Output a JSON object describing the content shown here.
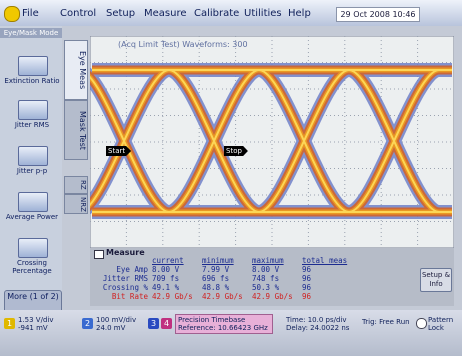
{
  "menu": {
    "items": [
      "File",
      "Control",
      "Setup",
      "Measure",
      "Calibrate",
      "Utilities",
      "Help"
    ],
    "datetime": "29 Oct 2008 10:46"
  },
  "sidebar": {
    "mode": "Eye/Mask Mode",
    "buttons": [
      "Extinction Ratio",
      "Jitter RMS",
      "Jitter p-p",
      "Average Power",
      "Crossing Percentage"
    ],
    "more": "More (1 of 2)",
    "tabs": [
      "Eye Meas",
      "Mask Test"
    ],
    "format_tabs": [
      "RZ",
      "NRZ"
    ]
  },
  "screen": {
    "status": "(Acq Limit Test)  Waveforms: 300",
    "markers": [
      "Start",
      "Stop"
    ]
  },
  "measure": {
    "title": "Measure",
    "columns": [
      "current",
      "minimum",
      "maximum",
      "total meas"
    ],
    "rows": [
      [
        "Eye Amp",
        "8.00 V",
        "7.99 V",
        "8.00 V",
        "96"
      ],
      [
        "Jitter RMS",
        "709 fs",
        "696 fs",
        "748 fs",
        "96"
      ],
      [
        "Crossing %",
        "49.1 %",
        "48.8 %",
        "50.3 %",
        "96"
      ],
      [
        "Bit Rate",
        "42.9 Gb/s",
        "42.9 Gb/s",
        "42.9 Gb/s",
        "96"
      ]
    ],
    "setup_button": "Setup & Info"
  },
  "status_bar": {
    "channel1": {
      "number": "1",
      "scale": "1.53 V/div",
      "offset": "-941 mV"
    },
    "channel2": {
      "number": "2",
      "scale": "100 mV/div",
      "offset": "24.0 mV"
    },
    "channel3": "3",
    "channel4": "4",
    "timebase": {
      "title": "Precision Timebase",
      "reference": "Reference: 10.66423 GHz"
    },
    "time": {
      "scale": "Time: 10.0 ps/div",
      "delay": "Delay: 24.0022 ns"
    },
    "trigger": "Trig: Free Run",
    "pattern": "Pattern Lock"
  }
}
